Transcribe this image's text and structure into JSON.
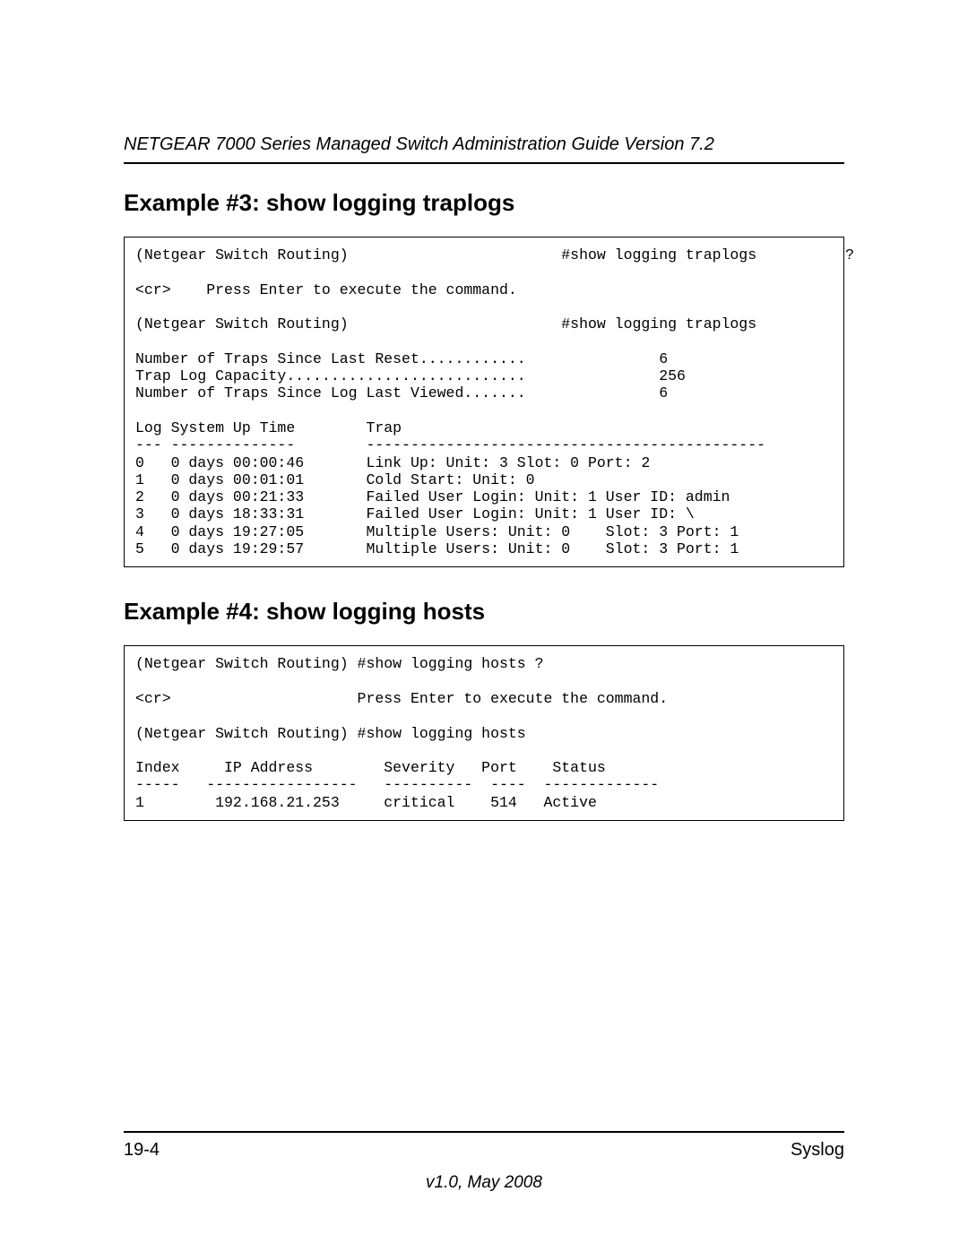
{
  "header": {
    "title": "NETGEAR 7000 Series Managed Switch Administration Guide Version 7.2"
  },
  "sections": {
    "example3": {
      "heading": "Example #3: show logging traplogs",
      "code": "(Netgear Switch Routing)                        #show logging traplogs          ?\n\n<cr>    Press Enter to execute the command.\n\n(Netgear Switch Routing)                        #show logging traplogs\n\nNumber of Traps Since Last Reset............               6\nTrap Log Capacity...........................               256\nNumber of Traps Since Log Last Viewed.......               6\n\nLog System Up Time        Trap\n--- --------------        ---------------------------------------------\n0   0 days 00:00:46       Link Up: Unit: 3 Slot: 0 Port: 2\n1   0 days 00:01:01       Cold Start: Unit: 0\n2   0 days 00:21:33       Failed User Login: Unit: 1 User ID: admin\n3   0 days 18:33:31       Failed User Login: Unit: 1 User ID: \\\n4   0 days 19:27:05       Multiple Users: Unit: 0    Slot: 3 Port: 1\n5   0 days 19:29:57       Multiple Users: Unit: 0    Slot: 3 Port: 1"
    },
    "example4": {
      "heading": "Example #4: show logging hosts",
      "code": "(Netgear Switch Routing) #show logging hosts ?\n\n<cr>                     Press Enter to execute the command.\n\n(Netgear Switch Routing) #show logging hosts\n\nIndex     IP Address        Severity   Port    Status\n-----   -----------------   ----------  ----  -------------\n1        192.168.21.253     critical    514   Active"
    }
  },
  "footer": {
    "pagenum": "19-4",
    "section": "Syslog",
    "version": "v1.0, May 2008"
  }
}
